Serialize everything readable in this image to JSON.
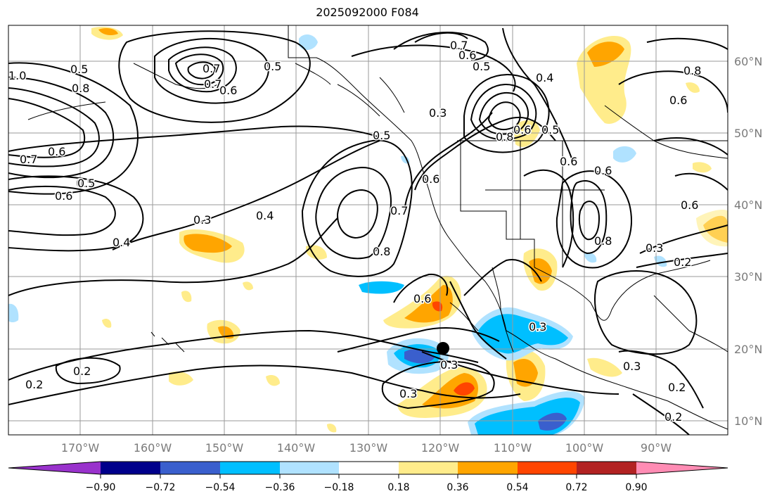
{
  "title": "2025092000 F084",
  "lon_labels": [
    "170°W",
    "160°W",
    "150°W",
    "140°W",
    "130°W",
    "120°W",
    "110°W",
    "100°W",
    "90°W"
  ],
  "lat_labels": [
    "60°N",
    "50°N",
    "40°N",
    "30°N",
    "20°N",
    "10°N"
  ],
  "colorbar": {
    "colors": [
      "#9932cc",
      "#00008b",
      "#3a5fcd",
      "#00bfff",
      "#b0e2ff",
      "#ffffff",
      "#ffec8b",
      "#ffa500",
      "#ff4500",
      "#b22222",
      "#ff8cb4"
    ],
    "tick_labels": [
      "−0.90",
      "−0.72",
      "−0.54",
      "−0.36",
      "−0.18",
      "0.18",
      "0.36",
      "0.54",
      "0.72",
      "0.90"
    ]
  },
  "contour_labels": [
    "1.0",
    "0.5",
    "0.8",
    "0.7",
    "0.6",
    "0.5",
    "0.7",
    "0.6",
    "0.5",
    "0.7",
    "0.6",
    "0.5",
    "0.4",
    "0.3",
    "0.8",
    "0.6",
    "0.5",
    "0.4",
    "0.6",
    "0.3",
    "0.8",
    "0.6",
    "0.7",
    "0.5",
    "0.6",
    "0.4",
    "0.7",
    "0.8",
    "0.6",
    "0.5",
    "0.6",
    "0.6",
    "0.8",
    "0.6",
    "0.3",
    "0.2",
    "0.3",
    "0.3",
    "0.3",
    "0.3",
    "0.2",
    "0.2",
    "0.2",
    "0.2"
  ],
  "marker": {
    "label": "storm-center",
    "lon": -119.5,
    "lat": 20.2
  }
}
